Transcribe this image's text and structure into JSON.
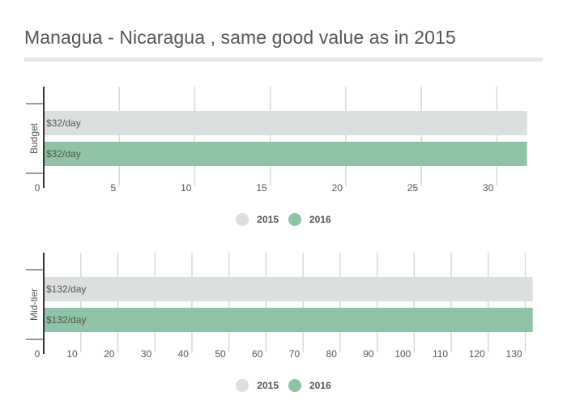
{
  "page": {
    "title": "Managua - Nicaragua , same good value as in 2015"
  },
  "colors": {
    "series_2015": "#dbe0dd",
    "series_2016": "#8ec3a5",
    "grid": "#d9d9d9",
    "axis": "#333333"
  },
  "chart_data": [
    {
      "type": "bar",
      "orientation": "horizontal",
      "category": "Budget",
      "categories": [
        "Budget"
      ],
      "series": [
        {
          "name": "2015",
          "values": [
            32
          ],
          "label": "$32/day"
        },
        {
          "name": "2016",
          "values": [
            32
          ],
          "label": "$32/day"
        }
      ],
      "xlim": [
        0,
        32.5
      ],
      "ticks": [
        0,
        5,
        10,
        15,
        20,
        25,
        30
      ],
      "legend": [
        "2015",
        "2016"
      ]
    },
    {
      "type": "bar",
      "orientation": "horizontal",
      "category": "Mid-tier",
      "categories": [
        "Mid-tier"
      ],
      "series": [
        {
          "name": "2015",
          "values": [
            132
          ],
          "label": "$132/day"
        },
        {
          "name": "2016",
          "values": [
            132
          ],
          "label": "$132/day"
        }
      ],
      "xlim": [
        0,
        132.5
      ],
      "ticks": [
        0,
        10,
        20,
        30,
        40,
        50,
        60,
        70,
        80,
        90,
        100,
        110,
        120,
        130
      ],
      "legend": [
        "2015",
        "2016"
      ]
    }
  ]
}
